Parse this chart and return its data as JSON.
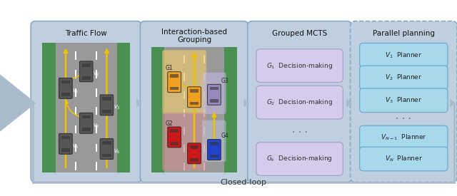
{
  "fig_width": 6.4,
  "fig_height": 2.75,
  "dpi": 100,
  "bg_color": "#ffffff",
  "panel_bg": "#bfcfdf",
  "panel_border": "#8aaabf",
  "block1_title": "Traffic Flow",
  "block2_title": "Interaction-based\nGrouping",
  "block3_title": "Grouped MCTS",
  "block4_title": "Parallel planning",
  "mcts_boxes": [
    "$G_1$  Decision-making",
    "$G_2$  Decision-making",
    "$G_k$  Decision-making"
  ],
  "planner_boxes": [
    "$V_1$  Planner",
    "$V_2$  Planner",
    "$V_3$  Planner",
    "$V_{N-1}$  Planner",
    "$V_N$  Planner"
  ],
  "mcts_box_color": "#d5ccec",
  "mcts_box_edge": "#aaa0cc",
  "planner_box_color": "#a8d8ec",
  "planner_box_edge": "#70aad0",
  "arrow_color": "#aabbcc",
  "closed_loop_label": "Closed-loop",
  "road_gray": "#999999",
  "road_dark": "#777777",
  "road_green": "#4a9050",
  "car_dark": "#555558",
  "car_orange": "#f0a020",
  "car_red": "#cc1818",
  "car_blue": "#2244cc",
  "car_purple": "#9988bb",
  "group_orange_bg": "#e8c870",
  "group_red_bg": "#c89090",
  "road_yellow": "#f0c000"
}
